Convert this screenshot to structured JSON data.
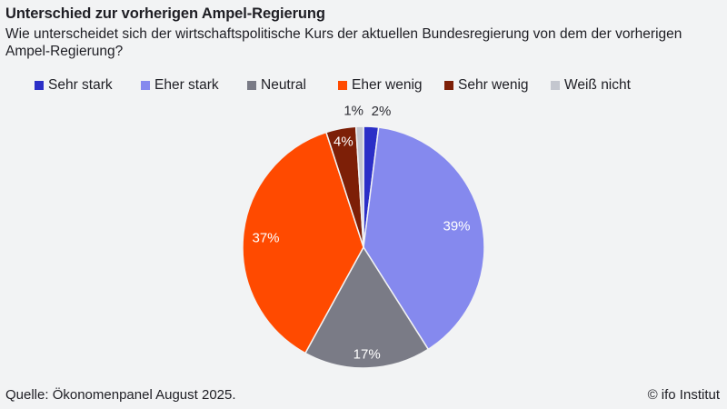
{
  "chart_data": {
    "type": "pie",
    "title": "Unterschied zur vorherigen Ampel-Regierung",
    "subtitle": "Wie unterscheidet sich der wirtschaftspolitische Kurs der aktuellen Bundesregierung von dem der vorherigen Ampel-Regierung?",
    "slices": [
      {
        "label": "Sehr stark",
        "value": 2,
        "display": "2%",
        "color": "#2b2fc7"
      },
      {
        "label": "Eher stark",
        "value": 39,
        "display": "39%",
        "color": "#8589ee"
      },
      {
        "label": "Neutral",
        "value": 17,
        "display": "17%",
        "color": "#7a7b86"
      },
      {
        "label": "Eher wenig",
        "value": 37,
        "display": "37%",
        "color": "#ff4a00"
      },
      {
        "label": "Sehr wenig",
        "value": 4,
        "display": "4%",
        "color": "#7d1f07"
      },
      {
        "label": "Weiß nicht",
        "value": 1,
        "display": "1%",
        "color": "#c4c7cf"
      }
    ],
    "legend_position": "top"
  },
  "footer": {
    "source": "Quelle: Ökonomenpanel August 2025.",
    "brand": "© ifo Institut"
  }
}
